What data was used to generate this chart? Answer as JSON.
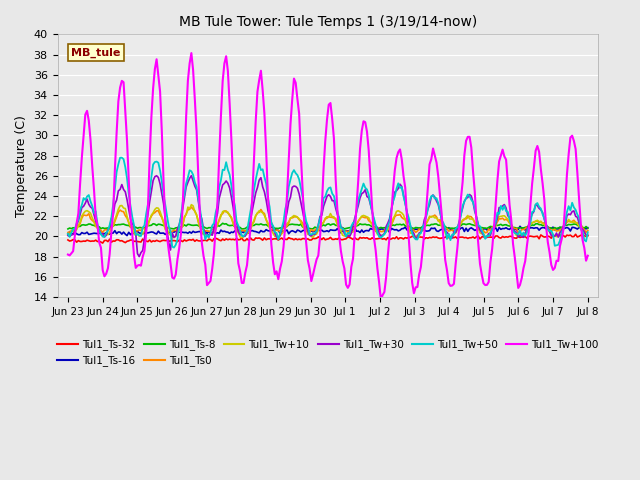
{
  "title": "MB Tule Tower: Tule Temps 1 (3/19/14-now)",
  "ylabel": "Temperature (C)",
  "ylim": [
    14,
    40
  ],
  "yticks": [
    14,
    16,
    18,
    20,
    22,
    24,
    26,
    28,
    30,
    32,
    34,
    36,
    38,
    40
  ],
  "xlim": [
    -0.3,
    15.3
  ],
  "bg_color": "#e8e8e8",
  "plot_bg": "#ebebeb",
  "legend_label": "MB_tule",
  "xtick_labels": [
    "Jun 23",
    "Jun 24",
    "Jun 25",
    "Jun 26",
    "Jun 27",
    "Jun 28",
    "Jun 29",
    "Jun 30",
    "Jul 1",
    "Jul 2",
    "Jul 3",
    "Jul 4",
    "Jul 5",
    "Jul 6",
    "Jul 7",
    "Jul 8"
  ],
  "series_colors": {
    "Tul1_Ts-32": "#ff0000",
    "Tul1_Ts-16": "#0000bb",
    "Tul1_Ts-8": "#00bb00",
    "Tul1_Ts0": "#ff8800",
    "Tul1_Tw+10": "#cccc00",
    "Tul1_Tw+30": "#9900cc",
    "Tul1_Tw+50": "#00cccc",
    "Tul1_Tw+100": "#ff00ff"
  }
}
